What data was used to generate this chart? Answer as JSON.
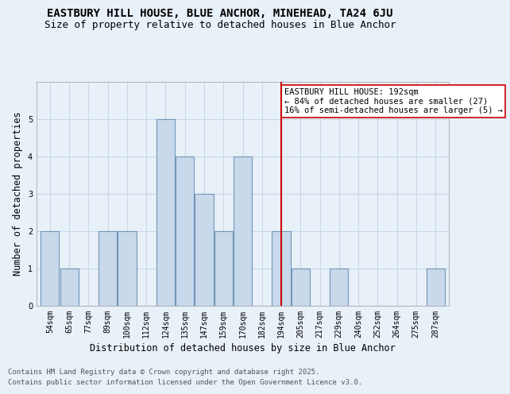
{
  "title": "EASTBURY HILL HOUSE, BLUE ANCHOR, MINEHEAD, TA24 6JU",
  "subtitle": "Size of property relative to detached houses in Blue Anchor",
  "xlabel": "Distribution of detached houses by size in Blue Anchor",
  "ylabel": "Number of detached properties",
  "bar_labels": [
    "54sqm",
    "65sqm",
    "77sqm",
    "89sqm",
    "100sqm",
    "112sqm",
    "124sqm",
    "135sqm",
    "147sqm",
    "159sqm",
    "170sqm",
    "182sqm",
    "194sqm",
    "205sqm",
    "217sqm",
    "229sqm",
    "240sqm",
    "252sqm",
    "264sqm",
    "275sqm",
    "287sqm"
  ],
  "bar_values": [
    2,
    1,
    0,
    2,
    2,
    0,
    5,
    4,
    3,
    2,
    4,
    0,
    2,
    1,
    0,
    1,
    0,
    0,
    0,
    0,
    1
  ],
  "bar_color": "#c9d9ec",
  "bar_edge_color": "#7096b8",
  "bar_edge_width": 0.8,
  "vline_x_index": 12,
  "vline_color": "#cc0000",
  "annotation_title": "EASTBURY HILL HOUSE: 192sqm",
  "annotation_line1": "← 84% of detached houses are smaller (27)",
  "annotation_line2": "16% of semi-detached houses are larger (5) →",
  "annotation_box_facecolor": "#ffffff",
  "annotation_edge_color": "#cc0000",
  "ylim": [
    0,
    6
  ],
  "yticks": [
    0,
    1,
    2,
    3,
    4,
    5
  ],
  "grid_color": "#c8d8e8",
  "bg_color": "#e8f0f8",
  "plot_bg_color": "#e8f0f8",
  "footer_line1": "Contains HM Land Registry data © Crown copyright and database right 2025.",
  "footer_line2": "Contains public sector information licensed under the Open Government Licence v3.0.",
  "title_fontsize": 10,
  "subtitle_fontsize": 9,
  "axis_label_fontsize": 8.5,
  "tick_fontsize": 7,
  "annotation_fontsize": 7.5,
  "footer_fontsize": 6.5
}
